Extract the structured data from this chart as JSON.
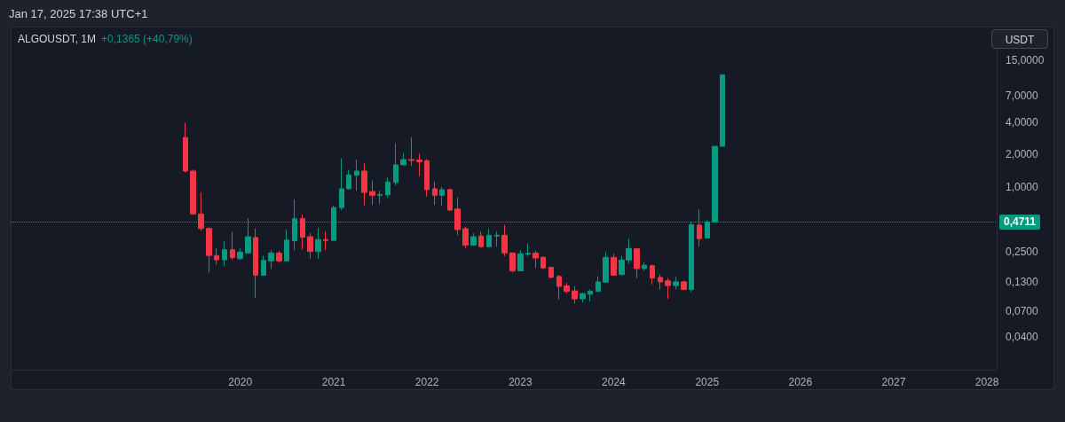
{
  "chart_data": {
    "type": "candlestick",
    "title": "ALGOUSDT, 1M",
    "subtitle": "+0,1365 (+40,79%)",
    "ylabel": "USDT",
    "annotations": [
      "Jan 17, 2025 17:38 UTC+1"
    ],
    "ref_lines": [
      {
        "axis": "y",
        "value": 0.4711,
        "label": "0,4711",
        "color": "#089981",
        "line_style": "dotted"
      }
    ],
    "x": [
      "2019-06",
      "2019-07",
      "2019-08",
      "2019-09",
      "2019-10",
      "2019-11",
      "2019-12",
      "2020-01",
      "2020-02",
      "2020-03",
      "2020-04",
      "2020-05",
      "2020-06",
      "2020-07",
      "2020-08",
      "2020-09",
      "2020-10",
      "2020-11",
      "2020-12",
      "2021-01",
      "2021-02",
      "2021-03",
      "2021-04",
      "2021-05",
      "2021-06",
      "2021-07",
      "2021-08",
      "2021-09",
      "2021-10",
      "2021-11",
      "2021-12",
      "2022-01",
      "2022-02",
      "2022-03",
      "2022-04",
      "2022-05",
      "2022-06",
      "2022-07",
      "2022-08",
      "2022-09",
      "2022-10",
      "2022-11",
      "2022-12",
      "2023-01",
      "2023-02",
      "2023-03",
      "2023-04",
      "2023-05",
      "2023-06",
      "2023-07",
      "2023-08",
      "2023-09",
      "2023-10",
      "2023-11",
      "2023-12",
      "2024-01",
      "2024-02",
      "2024-03",
      "2024-04",
      "2024-05",
      "2024-06",
      "2024-07",
      "2024-08",
      "2024-09",
      "2024-10",
      "2024-11",
      "2024-12",
      "2025-01",
      "2025-02",
      "2025-03"
    ],
    "ohlc": [
      [
        2.87,
        3.94,
        1.36,
        1.4
      ],
      [
        1.4,
        1.45,
        0.55,
        0.56
      ],
      [
        0.56,
        0.89,
        0.39,
        0.41
      ],
      [
        0.41,
        0.42,
        0.16,
        0.23
      ],
      [
        0.23,
        0.27,
        0.19,
        0.21
      ],
      [
        0.21,
        0.31,
        0.185,
        0.26
      ],
      [
        0.26,
        0.38,
        0.21,
        0.22
      ],
      [
        0.215,
        0.27,
        0.21,
        0.248
      ],
      [
        0.243,
        0.51,
        0.24,
        0.344
      ],
      [
        0.338,
        0.41,
        0.093,
        0.151
      ],
      [
        0.151,
        0.229,
        0.15,
        0.207
      ],
      [
        0.205,
        0.258,
        0.173,
        0.243
      ],
      [
        0.242,
        0.254,
        0.196,
        0.205
      ],
      [
        0.205,
        0.4,
        0.203,
        0.32
      ],
      [
        0.316,
        0.76,
        0.257,
        0.506
      ],
      [
        0.506,
        0.551,
        0.262,
        0.34
      ],
      [
        0.344,
        0.371,
        0.215,
        0.251
      ],
      [
        0.25,
        0.413,
        0.214,
        0.324
      ],
      [
        0.324,
        0.384,
        0.257,
        0.317
      ],
      [
        0.318,
        0.673,
        0.31,
        0.641
      ],
      [
        0.641,
        1.84,
        0.61,
        0.959
      ],
      [
        0.959,
        1.44,
        0.94,
        1.29
      ],
      [
        1.28,
        1.79,
        0.924,
        1.4
      ],
      [
        1.4,
        1.66,
        0.674,
        0.887
      ],
      [
        0.903,
        1.15,
        0.681,
        0.833
      ],
      [
        0.833,
        0.924,
        0.694,
        0.85
      ],
      [
        0.844,
        1.22,
        0.798,
        1.11
      ],
      [
        1.1,
        2.54,
        1.03,
        1.6
      ],
      [
        1.6,
        2.06,
        1.58,
        1.79
      ],
      [
        1.79,
        2.87,
        1.56,
        1.76
      ],
      [
        1.77,
        2.04,
        1.25,
        1.71
      ],
      [
        1.75,
        1.81,
        0.81,
        0.941
      ],
      [
        0.959,
        1.12,
        0.681,
        0.833
      ],
      [
        0.833,
        1.0,
        0.665,
        0.941
      ],
      [
        0.941,
        0.96,
        0.6,
        0.607
      ],
      [
        0.622,
        0.798,
        0.355,
        0.401
      ],
      [
        0.408,
        0.426,
        0.267,
        0.287
      ],
      [
        0.287,
        0.371,
        0.285,
        0.344
      ],
      [
        0.349,
        0.384,
        0.272,
        0.278
      ],
      [
        0.278,
        0.408,
        0.275,
        0.355
      ],
      [
        0.349,
        0.384,
        0.278,
        0.355
      ],
      [
        0.355,
        0.445,
        0.227,
        0.243
      ],
      [
        0.243,
        0.245,
        0.161,
        0.166
      ],
      [
        0.166,
        0.258,
        0.164,
        0.239
      ],
      [
        0.237,
        0.296,
        0.227,
        0.241
      ],
      [
        0.242,
        0.254,
        0.176,
        0.218
      ],
      [
        0.222,
        0.224,
        0.173,
        0.176
      ],
      [
        0.179,
        0.18,
        0.143,
        0.144
      ],
      [
        0.147,
        0.152,
        0.0901,
        0.119
      ],
      [
        0.12,
        0.128,
        0.1017,
        0.107
      ],
      [
        0.108,
        0.119,
        0.0823,
        0.0911
      ],
      [
        0.0911,
        0.104,
        0.0847,
        0.1017
      ],
      [
        0.1006,
        0.111,
        0.0863,
        0.107
      ],
      [
        0.107,
        0.148,
        0.106,
        0.131
      ],
      [
        0.13,
        0.246,
        0.129,
        0.221
      ],
      [
        0.221,
        0.239,
        0.149,
        0.151
      ],
      [
        0.153,
        0.227,
        0.151,
        0.209
      ],
      [
        0.209,
        0.33,
        0.193,
        0.267
      ],
      [
        0.265,
        0.27,
        0.142,
        0.174
      ],
      [
        0.174,
        0.199,
        0.166,
        0.187
      ],
      [
        0.185,
        0.19,
        0.124,
        0.142
      ],
      [
        0.144,
        0.154,
        0.111,
        0.131
      ],
      [
        0.134,
        0.142,
        0.0911,
        0.121
      ],
      [
        0.121,
        0.147,
        0.111,
        0.131
      ],
      [
        0.131,
        0.134,
        0.11,
        0.111
      ],
      [
        0.111,
        0.473,
        0.105,
        0.445
      ],
      [
        0.44,
        0.615,
        0.278,
        0.33
      ],
      [
        0.3346,
        0.49,
        0.33,
        0.4711
      ],
      [
        0.4711,
        2.38,
        0.4711,
        2.38
      ],
      [
        2.38,
        10.98,
        2.38,
        10.98
      ]
    ],
    "colors": [
      "#f23645",
      "#f23645",
      "#f23645",
      "#f23645",
      "#f23645",
      "#089981",
      "#f23645",
      "#089981",
      "#089981",
      "#f23645",
      "#089981",
      "#089981",
      "#f23645",
      "#089981",
      "#089981",
      "#f23645",
      "#f23645",
      "#089981",
      "#f23645",
      "#089981",
      "#089981",
      "#089981",
      "#089981",
      "#f23645",
      "#f23645",
      "#089981",
      "#089981",
      "#089981",
      "#089981",
      "#f23645",
      "#f23645",
      "#f23645",
      "#f23645",
      "#089981",
      "#f23645",
      "#f23645",
      "#f23645",
      "#089981",
      "#f23645",
      "#089981",
      "#089981",
      "#f23645",
      "#f23645",
      "#089981",
      "#089981",
      "#f23645",
      "#f23645",
      "#f23645",
      "#f23645",
      "#f23645",
      "#f23645",
      "#089981",
      "#089981",
      "#089981",
      "#089981",
      "#f23645",
      "#089981",
      "#089981",
      "#f23645",
      "#089981",
      "#f23645",
      "#f23645",
      "#f23645",
      "#089981",
      "#f23645",
      "#089981",
      "#f23645",
      "#089981",
      "#089981",
      "#089981"
    ],
    "xlim": [
      "2017-07-20",
      "2028-02-08"
    ],
    "xticks": [
      "2020",
      "2021",
      "2022",
      "2023",
      "2024",
      "2025",
      "2026",
      "2027",
      "2028"
    ],
    "ylim": [
      0.02,
      28
    ],
    "yticks": [
      {
        "value": 0.04,
        "label": "0,0400"
      },
      {
        "value": 0.07,
        "label": "0,0700"
      },
      {
        "value": 0.13,
        "label": "0,1300"
      },
      {
        "value": 0.25,
        "label": "0,2500"
      },
      {
        "value": 1,
        "label": "1,0000"
      },
      {
        "value": 2,
        "label": "2,0000"
      },
      {
        "value": 4,
        "label": "4,0000"
      },
      {
        "value": 7,
        "label": "7,0000"
      },
      {
        "value": 15,
        "label": "15,0000"
      }
    ],
    "log": true
  }
}
